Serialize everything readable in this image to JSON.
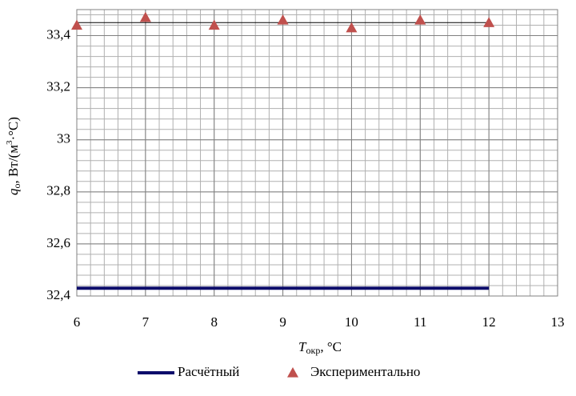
{
  "chart_data": {
    "type": "line",
    "x_label": {
      "symbol": "T",
      "subscript": "окр",
      "unit": ", °C"
    },
    "y_label": {
      "symbol": "q",
      "subscript": "о",
      "unit": ", Вт/(м",
      "superscript": "3",
      "unit_end": "·°C)"
    },
    "x": [
      6,
      7,
      8,
      9,
      10,
      11,
      12
    ],
    "series": [
      {
        "name": "Расчётный",
        "color": "#0d0d6b",
        "marker": "none",
        "values": [
          32.43,
          32.43,
          32.43,
          32.43,
          32.43,
          32.43,
          32.43
        ]
      },
      {
        "name": "Экспериментально",
        "color": "#c0504d",
        "marker": "triangle",
        "values": [
          33.44,
          33.47,
          33.44,
          33.46,
          33.43,
          33.46,
          33.45
        ]
      }
    ],
    "reference_line": {
      "x": [
        6,
        12
      ],
      "values": [
        33.45,
        33.45
      ],
      "color": "#000000"
    },
    "xlim": [
      6,
      13
    ],
    "xticks": [
      6,
      7,
      8,
      9,
      10,
      11,
      12,
      13
    ],
    "ylim": [
      32.4,
      33.5
    ],
    "yticks": [
      {
        "value": 32.4,
        "label": "32,4"
      },
      {
        "value": 32.6,
        "label": "32,6"
      },
      {
        "value": 32.8,
        "label": "32,8"
      },
      33,
      {
        "value": 33.2,
        "label": "33,2"
      },
      {
        "value": 33.4,
        "label": "33,4"
      }
    ],
    "grid": true,
    "minor_grid_divisions": 5,
    "legend": "bottom"
  }
}
